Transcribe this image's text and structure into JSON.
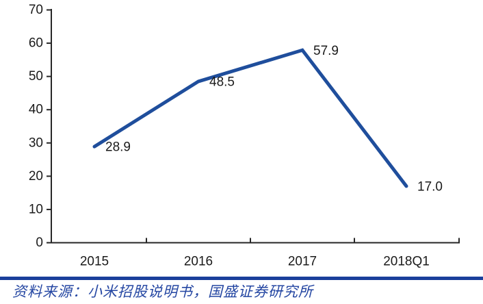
{
  "chart_data": {
    "type": "line",
    "title": "",
    "xlabel": "",
    "ylabel": "",
    "categories": [
      "2015",
      "2016",
      "2017",
      "2018Q1"
    ],
    "series": [
      {
        "name": "",
        "values": [
          28.9,
          48.5,
          57.9,
          17.0
        ]
      }
    ],
    "point_labels": [
      "28.9",
      "48.5",
      "57.9",
      "17.0"
    ],
    "ylim": [
      0,
      70
    ],
    "yticks": [
      0,
      10,
      20,
      30,
      40,
      50,
      60,
      70
    ],
    "grid": false,
    "legend": "none",
    "line_color": "#1F4E9C",
    "axis_color": "#262626",
    "label_color": "#1A1A1A"
  },
  "footer": {
    "divider_color": "#1A3F9B",
    "source_text": "资料来源：小米招股说明书，国盛证券研究所",
    "source_color": "#2446A2"
  }
}
